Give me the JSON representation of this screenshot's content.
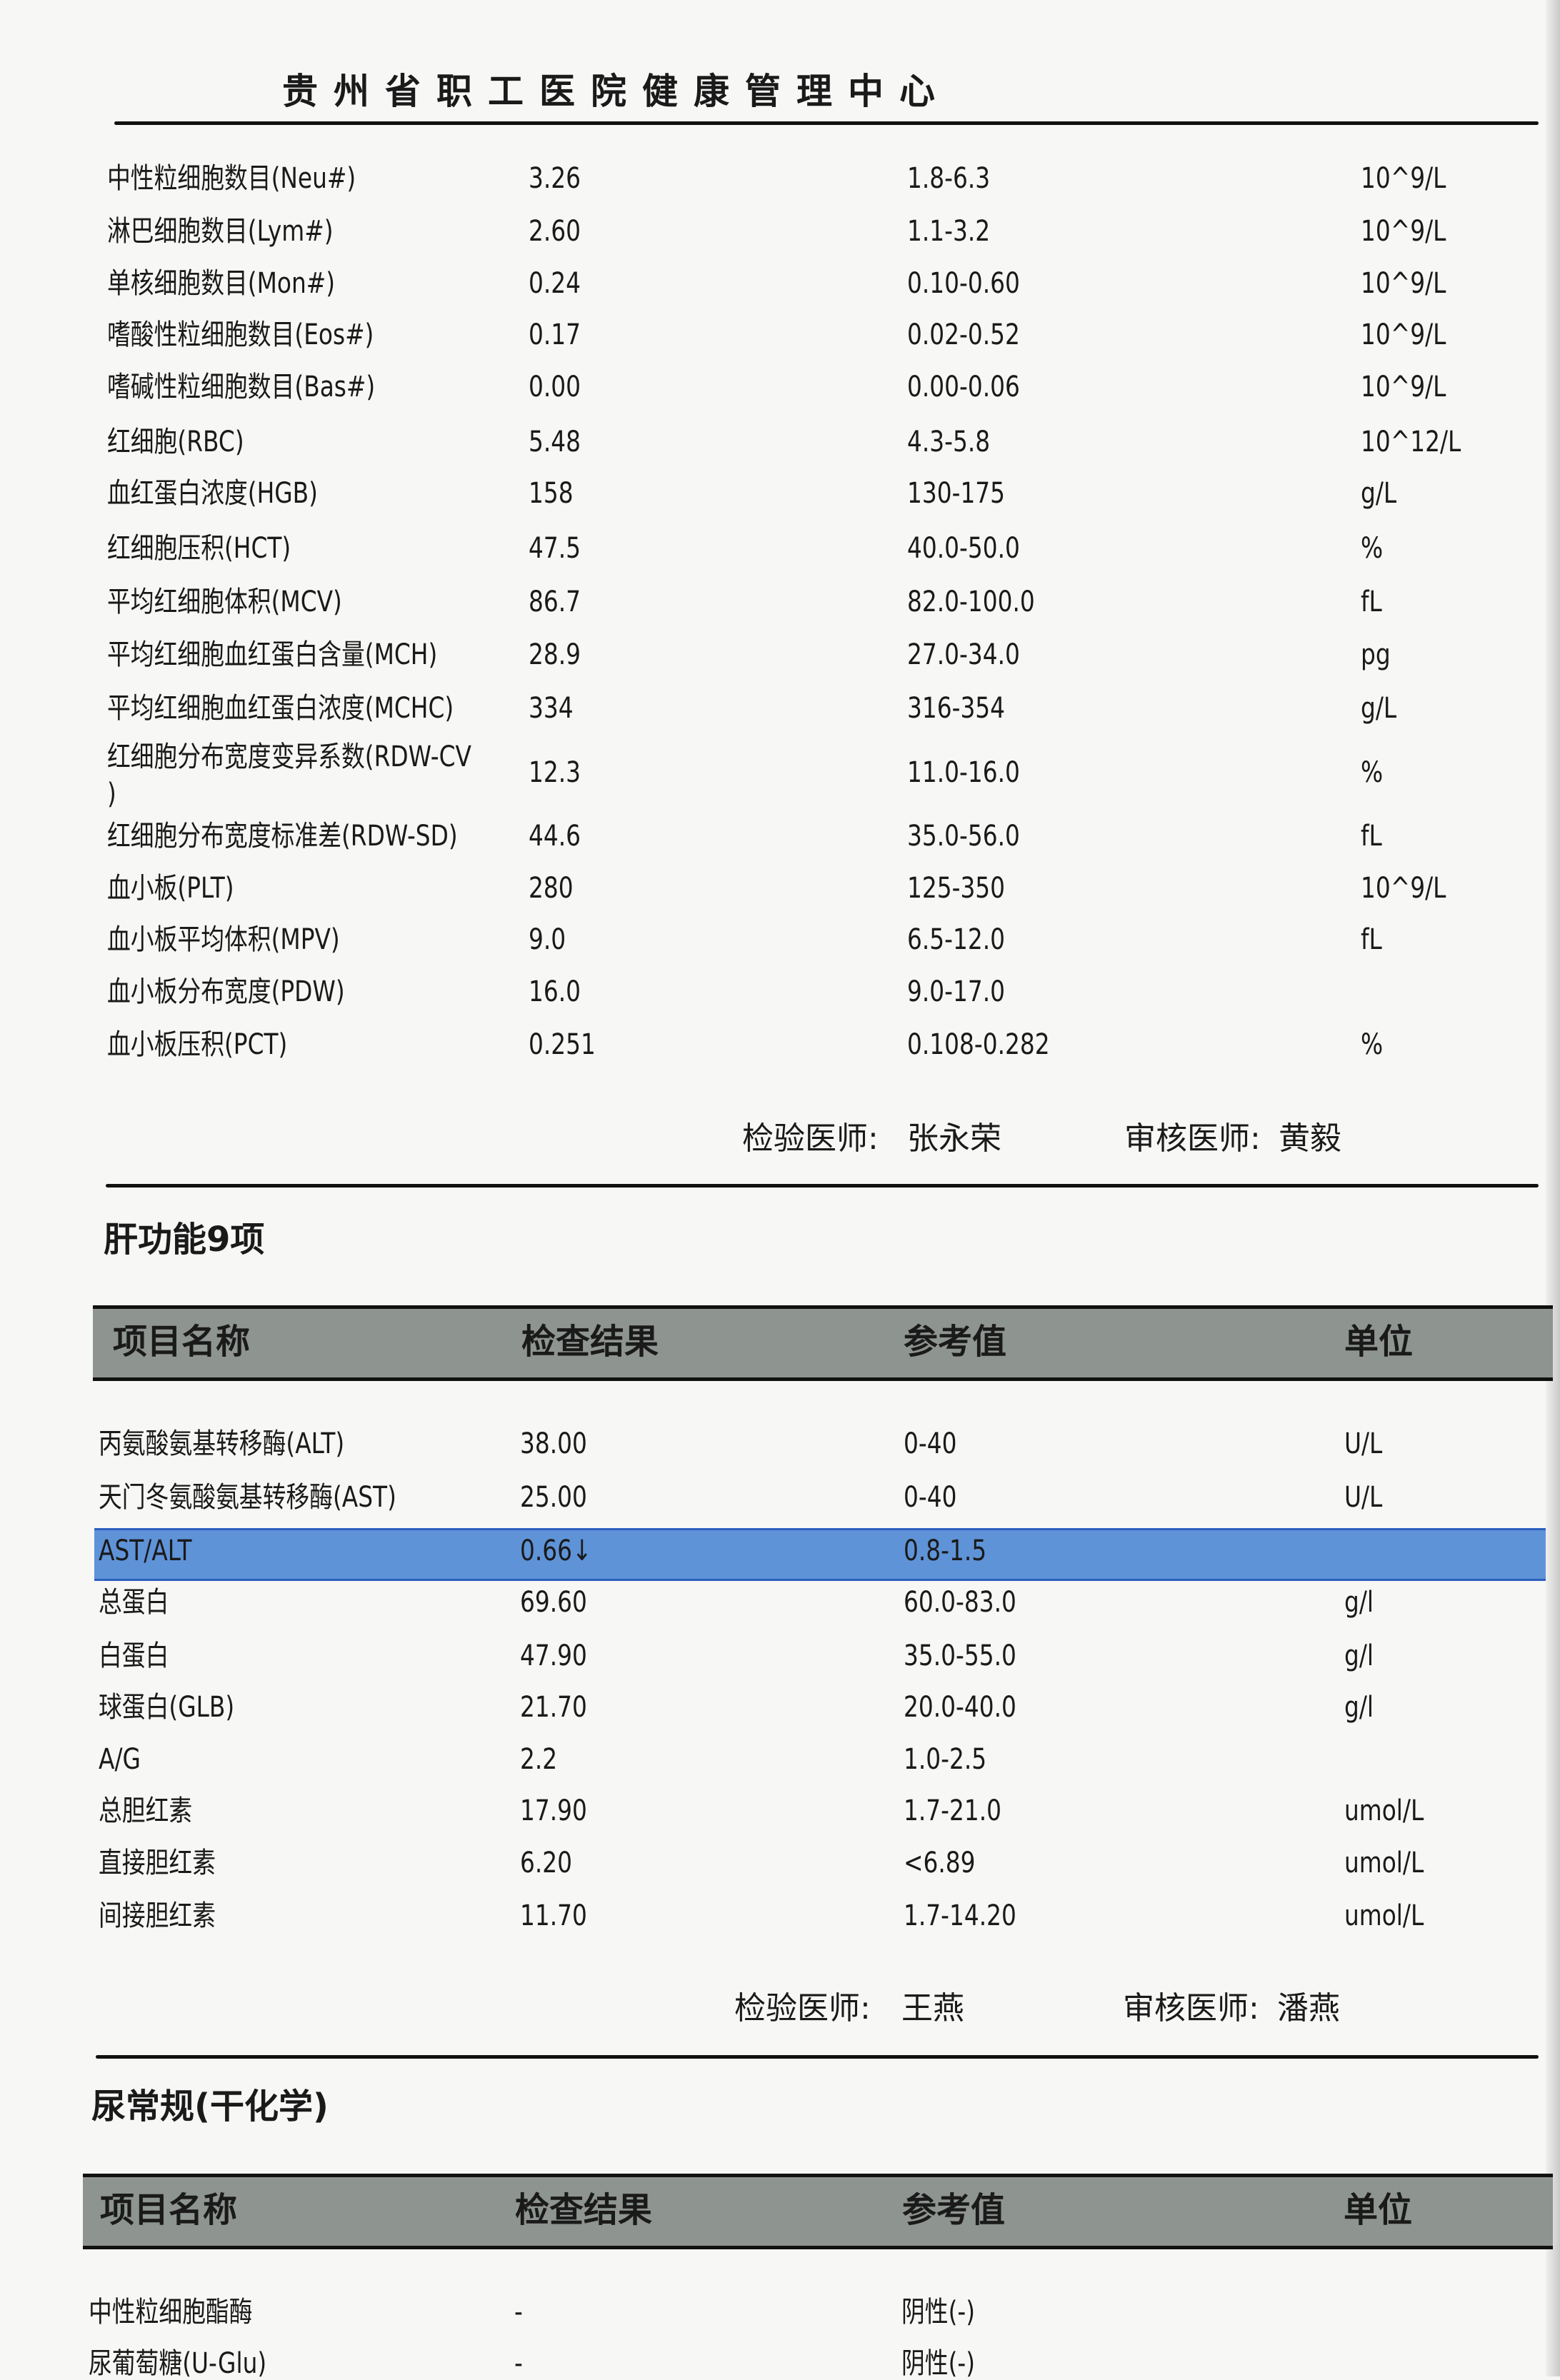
{
  "header": {
    "title": "贵州省职工医院健康管理中心"
  },
  "cbc": {
    "rows": [
      {
        "name": "中性粒细胞数目(Neu#)",
        "result": "3.26",
        "ref": "1.8-6.3",
        "unit": "10^9/L"
      },
      {
        "name": "淋巴细胞数目(Lym#)",
        "result": "2.60",
        "ref": "1.1-3.2",
        "unit": "10^9/L"
      },
      {
        "name": "单核细胞数目(Mon#)",
        "result": "0.24",
        "ref": "0.10-0.60",
        "unit": "10^9/L"
      },
      {
        "name": "嗜酸性粒细胞数目(Eos#)",
        "result": "0.17",
        "ref": "0.02-0.52",
        "unit": "10^9/L"
      },
      {
        "name": "嗜碱性粒细胞数目(Bas#)",
        "result": "0.00",
        "ref": "0.00-0.06",
        "unit": "10^9/L"
      },
      {
        "name": "红细胞(RBC)",
        "result": "5.48",
        "ref": "4.3-5.8",
        "unit": "10^12/L"
      },
      {
        "name": "血红蛋白浓度(HGB)",
        "result": "158",
        "ref": "130-175",
        "unit": "g/L"
      },
      {
        "name": "红细胞压积(HCT)",
        "result": "47.5",
        "ref": "40.0-50.0",
        "unit": "%"
      },
      {
        "name": "平均红细胞体积(MCV)",
        "result": "86.7",
        "ref": "82.0-100.0",
        "unit": "fL"
      },
      {
        "name": "平均红细胞血红蛋白含量(MCH)",
        "result": "28.9",
        "ref": "27.0-34.0",
        "unit": "pg"
      },
      {
        "name": "平均红细胞血红蛋白浓度(MCHC)",
        "result": "334",
        "ref": "316-354",
        "unit": "g/L"
      },
      {
        "name": "红细胞分布宽度变异系数(RDW-CV\n)",
        "result": "12.3",
        "ref": "11.0-16.0",
        "unit": "%"
      },
      {
        "name": "红细胞分布宽度标准差(RDW-SD)",
        "result": "44.6",
        "ref": "35.0-56.0",
        "unit": "fL"
      },
      {
        "name": "血小板(PLT)",
        "result": "280",
        "ref": "125-350",
        "unit": "10^9/L"
      },
      {
        "name": "血小板平均体积(MPV)",
        "result": "9.0",
        "ref": "6.5-12.0",
        "unit": "fL"
      },
      {
        "name": "血小板分布宽度(PDW)",
        "result": "16.0",
        "ref": "9.0-17.0",
        "unit": ""
      },
      {
        "name": "血小板压积(PCT)",
        "result": "0.251",
        "ref": "0.108-0.282",
        "unit": "%"
      }
    ],
    "inspector_label": "检验医师:",
    "inspector": "张永荣",
    "reviewer_label": "审核医师:",
    "reviewer": "黄毅"
  },
  "liver": {
    "title": "肝功能9项",
    "columns": [
      "项目名称",
      "检查结果",
      "参考值",
      "单位"
    ],
    "rows": [
      {
        "name": "丙氨酸氨基转移酶(ALT)",
        "result": "38.00",
        "ref": "0-40",
        "unit": "U/L"
      },
      {
        "name": "天门冬氨酸氨基转移酶(AST)",
        "result": "25.00",
        "ref": "0-40",
        "unit": "U/L"
      },
      {
        "name": "AST/ALT",
        "result": "0.66↓",
        "ref": "0.8-1.5",
        "unit": "",
        "highlighted": true
      },
      {
        "name": "总蛋白",
        "result": "69.60",
        "ref": "60.0-83.0",
        "unit": "g/l"
      },
      {
        "name": "白蛋白",
        "result": "47.90",
        "ref": "35.0-55.0",
        "unit": "g/l"
      },
      {
        "name": "球蛋白(GLB)",
        "result": "21.70",
        "ref": "20.0-40.0",
        "unit": "g/l"
      },
      {
        "name": "A/G",
        "result": "2.2",
        "ref": "1.0-2.5",
        "unit": ""
      },
      {
        "name": "总胆红素",
        "result": "17.90",
        "ref": "1.7-21.0",
        "unit": "umol/L"
      },
      {
        "name": "直接胆红素",
        "result": "6.20",
        "ref": "<6.89",
        "unit": "umol/L"
      },
      {
        "name": "间接胆红素",
        "result": "11.70",
        "ref": "1.7-14.20",
        "unit": "umol/L"
      }
    ],
    "highlight_color": "#5f93d8",
    "inspector_label": "检验医师:",
    "inspector": "王燕",
    "reviewer_label": "审核医师:",
    "reviewer": "潘燕"
  },
  "urine": {
    "title": "尿常规(干化学)",
    "columns": [
      "项目名称",
      "检查结果",
      "参考值",
      "单位"
    ],
    "rows": [
      {
        "name": "中性粒细胞酯酶",
        "result": "-",
        "ref": "阴性(-)",
        "unit": ""
      },
      {
        "name": "尿葡萄糖(U-Glu)",
        "result": "-",
        "ref": "阴性(-)",
        "unit": ""
      }
    ]
  }
}
